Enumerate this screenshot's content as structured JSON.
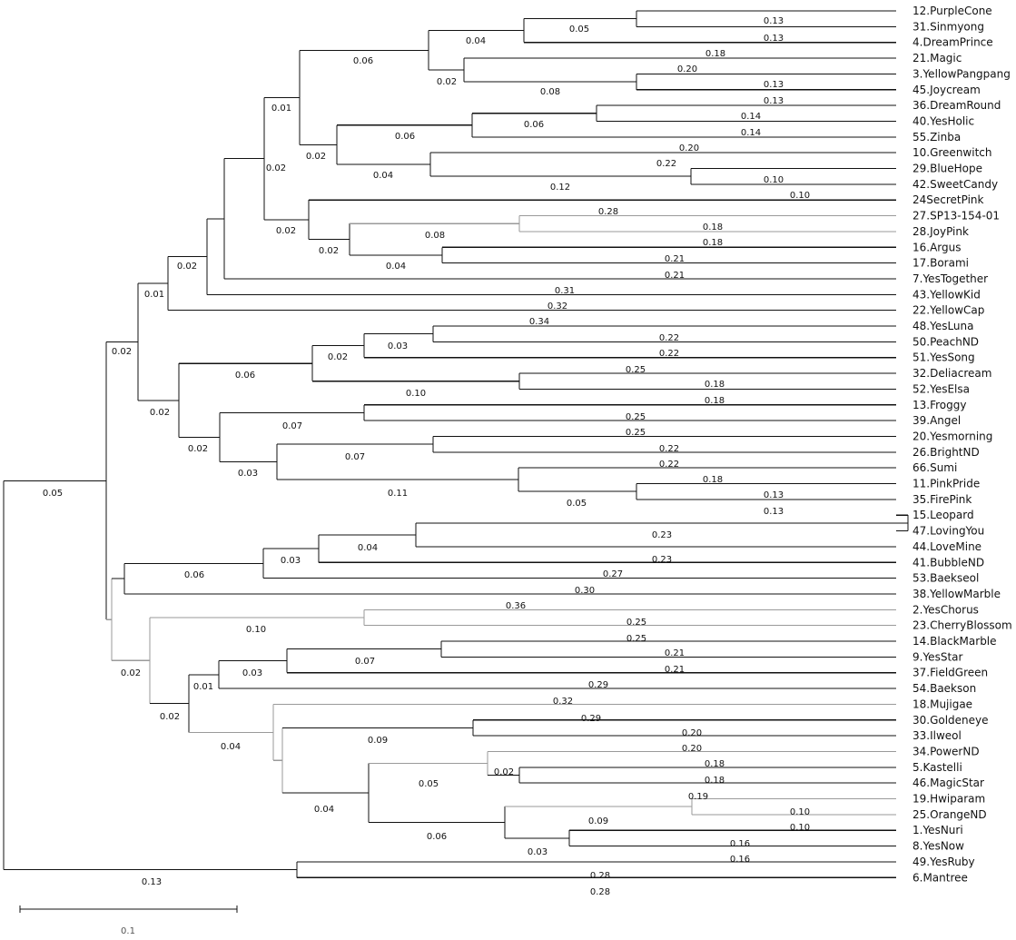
{
  "taxa": [
    "12.PurpleCone",
    "31.Sinmyong",
    "4.DreamPrince",
    "21.Magic",
    "3.YellowPangpang",
    "45.Joycream",
    "36.DreamRound",
    "40.YesHolic",
    "55.Zinba",
    "10.Greenwitch",
    "29.BlueHope",
    "42.SweetCandy",
    "24SecretPink",
    "27.SP13-154-01",
    "28.JoyPink",
    "16.Argus",
    "17.Borami",
    "7.YesTogether",
    "43.YellowKid",
    "22.YellowCap",
    "48.YesLuna",
    "50.PeachND",
    "51.YesSong",
    "32.Deliacream",
    "52.YesElsa",
    "13.Froggy",
    "39.Angel",
    "20.Yesmorning",
    "26.BrightND",
    "66.Sumi",
    "11.PinkPride",
    "35.FirePink",
    "15.Leopard",
    "47.LovingYou",
    "44.LoveMine",
    "41.BubbleND",
    "53.Baekseol",
    "38.YellowMarble",
    "2.YesChorus",
    "23.CherryBlossom",
    "14.BlackMarble",
    "9.YesStar",
    "37.FieldGreen",
    "54.Baekson",
    "18.Mujigae",
    "30.Goldeneye",
    "33.Ilweol",
    "34.PowerND",
    "5.Kastelli",
    "46.MagicStar",
    "19.Hwiparam",
    "25.OrangeND",
    "1.YesNuri",
    "8.YesNow",
    "49.YesRuby",
    "6.Mantree"
  ],
  "branch_labels": [
    "0.13",
    "0.05",
    "0.13",
    "0.04",
    "0.18",
    "0.06",
    "0.20",
    "0.13",
    "0.02",
    "0.08",
    "0.13",
    "0.01",
    "0.14",
    "0.06",
    "0.14",
    "0.06",
    "0.02",
    "0.20",
    "0.02",
    "0.22",
    "0.04",
    "0.10",
    "0.12",
    "0.10",
    "0.28",
    "0.02",
    "0.18",
    "0.08",
    "0.18",
    "0.02",
    "0.21",
    "0.04",
    "0.02",
    "0.21",
    "0.01",
    "0.31",
    "0.32",
    "0.02",
    "0.34",
    "0.22",
    "0.03",
    "0.02",
    "0.22",
    "0.06",
    "0.25",
    "0.18",
    "0.10",
    "0.02",
    "0.18",
    "0.25",
    "0.07",
    "0.02",
    "0.25",
    "0.07",
    "0.22",
    "0.03",
    "0.22",
    "0.11",
    "0.18",
    "0.05",
    "0.13",
    "0.13",
    "0.05",
    "0.23",
    "0.04",
    "0.03",
    "0.23",
    "0.06",
    "0.27",
    "0.30",
    "0.36",
    "0.10",
    "0.25",
    "0.25",
    "0.02",
    "0.21",
    "0.07",
    "0.03",
    "0.21",
    "0.01",
    "0.29",
    "0.02",
    "0.32",
    "0.04",
    "0.29",
    "0.20",
    "0.09",
    "0.20",
    "0.02",
    "0.18",
    "0.05",
    "0.18",
    "0.04",
    "0.19",
    "0.10",
    "0.09",
    "0.06",
    "0.10",
    "0.03",
    "0.16",
    "0.16",
    "0.13",
    "0.28",
    "0.28"
  ],
  "scale_bar": {
    "label": "0.1"
  },
  "colors": {
    "line_dark": "#111111",
    "line_light": "#9a9a9a"
  }
}
